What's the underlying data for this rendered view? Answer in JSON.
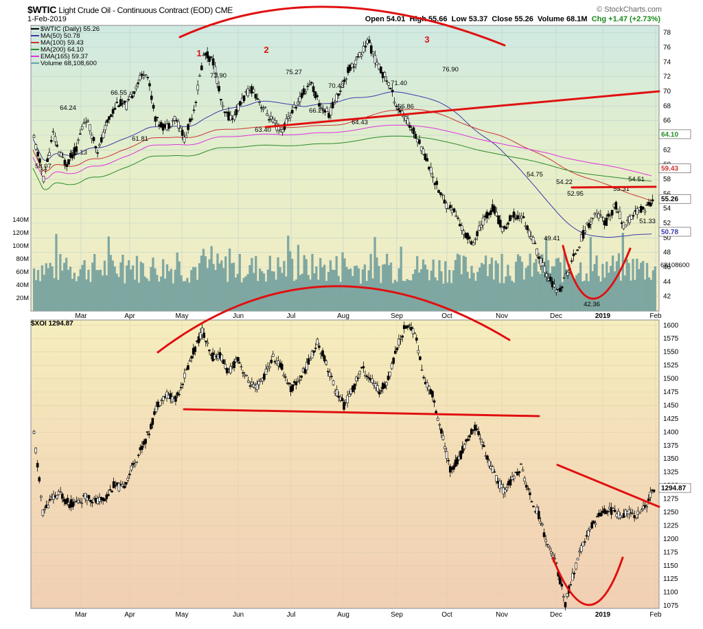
{
  "header": {
    "symbol": "$WTIC",
    "name": "Light Crude Oil - Continuous Contract (EOD)",
    "exchange": "CME",
    "date": "1-Feb-2019",
    "source": "© StockCharts.com",
    "open": "Open 54.01",
    "high": "High 55.66",
    "low": "Low 53.37",
    "close": "Close 55.26",
    "volume": "Volume 68.1M",
    "change": "Chg +1.47 (+2.73%)"
  },
  "legend_top": [
    {
      "label": "$WTIC (Daily) 55.26",
      "color": "#000000"
    },
    {
      "label": "MA(50) 50.78",
      "color": "#3a3aa8"
    },
    {
      "label": "MA(100) 59.43",
      "color": "#cc3333"
    },
    {
      "label": "MA(200) 64.10",
      "color": "#2a8a2a"
    },
    {
      "label": "EMA(165) 59.37",
      "color": "#e030e0"
    },
    {
      "label": "Volume 68,108,600",
      "color": "#6aa6a6"
    }
  ],
  "legend_bottom": "$XOI 1294.87",
  "chart_data": [
    {
      "type": "candlestick",
      "title": "$WTIC Light Crude Oil - Continuous Contract (EOD)",
      "x_labels": [
        "Mar",
        "Apr",
        "May",
        "Jun",
        "Jul",
        "Aug",
        "Sep",
        "Oct",
        "Nov",
        "Dec",
        "2019",
        "Feb"
      ],
      "ylim": [
        40,
        79
      ],
      "y_ticks": [
        42,
        44,
        46,
        48,
        50,
        52,
        54,
        56,
        58,
        60,
        62,
        64,
        66,
        68,
        70,
        72,
        74,
        76,
        78
      ],
      "last_value": "55.26",
      "ma_values": [
        "64.10",
        "59.43",
        "50.78"
      ],
      "volume_ticks": [
        "20M",
        "40M",
        "60M",
        "80M",
        "100M",
        "120M",
        "140M"
      ],
      "volume_last": "68108600",
      "price_points": [
        [
          0,
          63.5
        ],
        [
          3,
          58.1
        ],
        [
          6,
          64.2
        ],
        [
          8,
          61.4
        ],
        [
          10,
          60.1
        ],
        [
          13,
          62.0
        ],
        [
          16,
          66.5
        ],
        [
          20,
          61.8
        ],
        [
          23,
          66.0
        ],
        [
          26,
          68.5
        ],
        [
          29,
          68.0
        ],
        [
          32,
          71.0
        ],
        [
          35,
          72.9
        ],
        [
          38,
          66.0
        ],
        [
          41,
          65.0
        ],
        [
          44,
          66.5
        ],
        [
          47,
          63.4
        ],
        [
          50,
          68.0
        ],
        [
          53,
          75.3
        ],
        [
          56,
          74.0
        ],
        [
          59,
          67.0
        ],
        [
          62,
          66.3
        ],
        [
          65,
          69.0
        ],
        [
          68,
          70.4
        ],
        [
          71,
          68.0
        ],
        [
          74,
          66.0
        ],
        [
          77,
          64.4
        ],
        [
          80,
          67.0
        ],
        [
          83,
          69.0
        ],
        [
          86,
          71.4
        ],
        [
          89,
          68.0
        ],
        [
          92,
          66.9
        ],
        [
          95,
          70.0
        ],
        [
          98,
          73.0
        ],
        [
          101,
          74.5
        ],
        [
          104,
          76.9
        ],
        [
          107,
          73.5
        ],
        [
          110,
          71.5
        ],
        [
          113,
          68.0
        ],
        [
          116,
          66.0
        ],
        [
          119,
          64.0
        ],
        [
          122,
          61.0
        ],
        [
          125,
          57.5
        ],
        [
          128,
          54.8
        ],
        [
          131,
          53.5
        ],
        [
          134,
          50.5
        ],
        [
          137,
          49.4
        ],
        [
          140,
          52.5
        ],
        [
          143,
          54.2
        ],
        [
          146,
          51.0
        ],
        [
          149,
          53.0
        ],
        [
          152,
          52.9
        ],
        [
          155,
          50.0
        ],
        [
          158,
          46.5
        ],
        [
          161,
          44.0
        ],
        [
          163,
          42.4
        ],
        [
          166,
          45.0
        ],
        [
          169,
          48.5
        ],
        [
          172,
          51.5
        ],
        [
          175,
          53.3
        ],
        [
          178,
          52.0
        ],
        [
          181,
          54.5
        ],
        [
          184,
          51.3
        ],
        [
          187,
          53.5
        ],
        [
          190,
          54.0
        ],
        [
          193,
          55.3
        ]
      ],
      "annotations": [
        "1",
        "2",
        "3",
        "72.90",
        "75.27",
        "76.90",
        "70.43",
        "71.40",
        "66.29",
        "66.86",
        "64.43",
        "63.40",
        "64.24",
        "66.55",
        "58.07",
        "60.13",
        "61.81",
        "54.75",
        "54.22",
        "52.95",
        "49.41",
        "42.36",
        "53.31",
        "54.51",
        "51.33"
      ]
    },
    {
      "type": "candlestick",
      "title": "$XOI",
      "x_labels": [
        "Mar",
        "Apr",
        "May",
        "Jun",
        "Jul",
        "Aug",
        "Sep",
        "Oct",
        "Nov",
        "Dec",
        "2019",
        "Feb"
      ],
      "ylim": [
        1070,
        1610
      ],
      "y_ticks": [
        1075,
        1100,
        1125,
        1150,
        1175,
        1200,
        1225,
        1250,
        1275,
        1300,
        1325,
        1350,
        1375,
        1400,
        1425,
        1450,
        1475,
        1500,
        1525,
        1550,
        1575,
        1600
      ],
      "last_value": "1294.87",
      "price_points": [
        [
          0,
          1395
        ],
        [
          3,
          1250
        ],
        [
          6,
          1275
        ],
        [
          9,
          1285
        ],
        [
          12,
          1265
        ],
        [
          15,
          1270
        ],
        [
          18,
          1280
        ],
        [
          21,
          1270
        ],
        [
          24,
          1275
        ],
        [
          27,
          1300
        ],
        [
          30,
          1295
        ],
        [
          33,
          1330
        ],
        [
          36,
          1365
        ],
        [
          39,
          1400
        ],
        [
          42,
          1455
        ],
        [
          45,
          1470
        ],
        [
          48,
          1460
        ],
        [
          51,
          1505
        ],
        [
          54,
          1550
        ],
        [
          57,
          1590
        ],
        [
          60,
          1540
        ],
        [
          63,
          1545
        ],
        [
          66,
          1510
        ],
        [
          69,
          1540
        ],
        [
          72,
          1500
        ],
        [
          75,
          1480
        ],
        [
          78,
          1505
        ],
        [
          81,
          1540
        ],
        [
          84,
          1520
        ],
        [
          87,
          1480
        ],
        [
          90,
          1500
        ],
        [
          93,
          1530
        ],
        [
          96,
          1570
        ],
        [
          99,
          1530
        ],
        [
          102,
          1480
        ],
        [
          105,
          1450
        ],
        [
          108,
          1480
        ],
        [
          111,
          1520
        ],
        [
          114,
          1500
        ],
        [
          117,
          1475
        ],
        [
          120,
          1500
        ],
        [
          123,
          1560
        ],
        [
          126,
          1600
        ],
        [
          129,
          1590
        ],
        [
          132,
          1500
        ],
        [
          135,
          1470
        ],
        [
          138,
          1400
        ],
        [
          141,
          1330
        ],
        [
          144,
          1350
        ],
        [
          147,
          1390
        ],
        [
          150,
          1410
        ],
        [
          153,
          1360
        ],
        [
          156,
          1320
        ],
        [
          159,
          1290
        ],
        [
          162,
          1310
        ],
        [
          165,
          1335
        ],
        [
          168,
          1280
        ],
        [
          171,
          1245
        ],
        [
          174,
          1190
        ],
        [
          177,
          1150
        ],
        [
          180,
          1080
        ],
        [
          183,
          1140
        ],
        [
          186,
          1190
        ],
        [
          189,
          1225
        ],
        [
          192,
          1250
        ],
        [
          195,
          1255
        ],
        [
          198,
          1245
        ],
        [
          201,
          1250
        ],
        [
          204,
          1245
        ],
        [
          207,
          1260
        ],
        [
          210,
          1294.87
        ]
      ],
      "annotations": []
    }
  ]
}
